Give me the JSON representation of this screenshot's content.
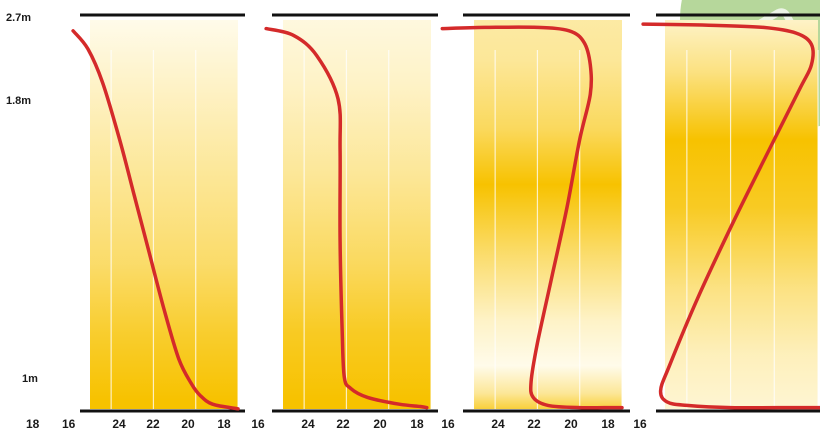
{
  "chart_data": {
    "type": "line",
    "title": "",
    "xlabel": "",
    "ylabel": "",
    "colors": {
      "curve": "#d42a2a",
      "band_strong": "#f7c200",
      "band_light": "#fffbea",
      "frame": "#111111",
      "gridline": "#ffffff",
      "badge": "#7ab648"
    },
    "y_axis": {
      "unit": "m",
      "range": [
        0.95,
        2.7
      ],
      "tick_labels": [
        {
          "value": 2.7,
          "label": "2.7m"
        },
        {
          "value": 1.8,
          "label": "1.8m"
        },
        {
          "value": 1.0,
          "label": "1m"
        }
      ]
    },
    "x_axis": {
      "quantity": "temperature",
      "orientation": "reversed",
      "range": [
        26,
        17
      ],
      "gridlines": [
        24,
        22,
        20,
        18
      ],
      "edge_labels": [
        {
          "value": 18,
          "label": "18",
          "position": "left-edge"
        },
        {
          "value": 16,
          "label": "16",
          "position": "right-edge"
        }
      ]
    },
    "panels": [
      {
        "ticks": [
          {
            "value": 24,
            "label": "24"
          },
          {
            "value": 22,
            "label": "22"
          },
          {
            "value": 20,
            "label": "20"
          },
          {
            "value": 18,
            "label": "18"
          }
        ],
        "right_label": "16",
        "shading": [
          {
            "height": 2.7,
            "intensity": 0.0
          },
          {
            "height": 2.45,
            "intensity": 0.12
          },
          {
            "height": 2.0,
            "intensity": 0.35
          },
          {
            "height": 1.6,
            "intensity": 0.55
          },
          {
            "height": 1.3,
            "intensity": 0.8
          },
          {
            "height": 1.0,
            "intensity": 1.0
          }
        ],
        "series": [
          {
            "x": [
              25.8,
              25.1,
              24.4,
              23.6,
              22.9,
              22.2,
              21.5,
              20.8,
              20.2,
              19.8,
              19.2,
              18.0
            ],
            "y": [
              2.63,
              2.55,
              2.4,
              2.15,
              1.9,
              1.65,
              1.4,
              1.18,
              1.07,
              1.02,
              0.98,
              0.96
            ]
          }
        ]
      },
      {
        "ticks": [
          {
            "value": 24,
            "label": "24"
          },
          {
            "value": 22,
            "label": "22"
          },
          {
            "value": 20,
            "label": "20"
          },
          {
            "value": 18,
            "label": "18"
          }
        ],
        "right_label": "16",
        "shading": [
          {
            "height": 2.7,
            "intensity": 0.05
          },
          {
            "height": 2.4,
            "intensity": 0.15
          },
          {
            "height": 2.0,
            "intensity": 0.35
          },
          {
            "height": 1.6,
            "intensity": 0.6
          },
          {
            "height": 1.3,
            "intensity": 0.85
          },
          {
            "height": 1.0,
            "intensity": 1.0
          }
        ],
        "series": [
          {
            "x": [
              25.8,
              24.5,
              23.4,
              22.4,
              22.3,
              22.3,
              22.2,
              22.1,
              21.8,
              21.0,
              19.5,
              18.5,
              18.2
            ],
            "y": [
              2.64,
              2.61,
              2.52,
              2.33,
              2.1,
              1.7,
              1.3,
              1.1,
              1.05,
              1.01,
              0.98,
              0.97,
              0.965
            ]
          }
        ]
      },
      {
        "ticks": [
          {
            "value": 24,
            "label": "24"
          },
          {
            "value": 22,
            "label": "22"
          },
          {
            "value": 20,
            "label": "20"
          },
          {
            "value": 18,
            "label": "18"
          }
        ],
        "right_label": "16",
        "shading": [
          {
            "height": 2.7,
            "intensity": 0.3
          },
          {
            "height": 2.5,
            "intensity": 0.35
          },
          {
            "height": 2.2,
            "intensity": 0.6
          },
          {
            "height": 1.95,
            "intensity": 1.0
          },
          {
            "height": 1.65,
            "intensity": 0.55
          },
          {
            "height": 1.35,
            "intensity": 0.15
          },
          {
            "height": 1.15,
            "intensity": 0.0
          },
          {
            "height": 1.03,
            "intensity": 0.35
          },
          {
            "height": 0.95,
            "intensity": 0.75
          }
        ],
        "series": [
          {
            "x": [
              26.5,
              24.5,
              22.0,
              20.5,
              19.8,
              19.5,
              19.5,
              20.0,
              20.6,
              21.3,
              22.0,
              22.3,
              22.2,
              21.5,
              20.0,
              18.5,
              18.0
            ],
            "y": [
              2.64,
              2.645,
              2.645,
              2.63,
              2.58,
              2.48,
              2.35,
              2.15,
              1.85,
              1.55,
              1.25,
              1.08,
              1.01,
              0.975,
              0.965,
              0.965,
              0.965
            ]
          }
        ]
      },
      {
        "ticks": [],
        "right_label": "",
        "shading": [
          {
            "height": 2.7,
            "intensity": 0.15
          },
          {
            "height": 2.45,
            "intensity": 0.45
          },
          {
            "height": 2.15,
            "intensity": 1.0
          },
          {
            "height": 1.85,
            "intensity": 0.85
          },
          {
            "height": 1.5,
            "intensity": 0.45
          },
          {
            "height": 1.2,
            "intensity": 0.2
          },
          {
            "height": 0.95,
            "intensity": 0.1
          }
        ],
        "series": [
          {
            "x": [
              26.0,
              23.0,
              20.5,
              19.0,
              18.3,
              18.3,
              18.8,
              20.0,
              21.8,
              23.5,
              24.8,
              25.2,
              24.9,
              24.0,
              22.0,
              19.0,
              17.5
            ],
            "y": [
              2.66,
              2.655,
              2.645,
              2.62,
              2.57,
              2.48,
              2.38,
              2.15,
              1.8,
              1.45,
              1.15,
              1.04,
              0.99,
              0.975,
              0.965,
              0.965,
              0.965
            ]
          }
        ]
      }
    ]
  }
}
